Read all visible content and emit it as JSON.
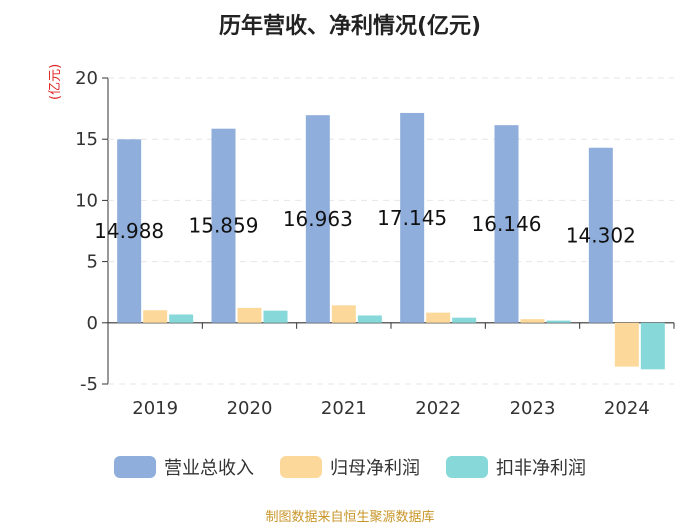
{
  "chart_data": {
    "type": "bar",
    "title": "历年营收、净利情况(亿元)",
    "unit_label": "(亿元)",
    "categories": [
      "2019",
      "2020",
      "2021",
      "2022",
      "2023",
      "2024"
    ],
    "ylim": [
      -5,
      20
    ],
    "yticks": [
      "20",
      "15",
      "10",
      "5",
      "0",
      "-5"
    ],
    "series": [
      {
        "name": "营业总收入",
        "color": "#8faedb",
        "values": [
          14.988,
          15.859,
          16.963,
          17.145,
          16.146,
          14.302
        ]
      },
      {
        "name": "归母净利润",
        "color": "#fcd99a",
        "values": [
          1.03,
          1.22,
          1.43,
          0.83,
          0.3,
          -3.58
        ]
      },
      {
        "name": "扣非净利润",
        "color": "#86d8d9",
        "values": [
          0.68,
          0.99,
          0.6,
          0.42,
          0.18,
          -3.8
        ]
      }
    ],
    "data_labels": [
      "14.988",
      "15.859",
      "16.963",
      "17.145",
      "16.146",
      "14.302"
    ],
    "legend_position": "bottom",
    "grid": true
  },
  "source": "制图数据来自恒生聚源数据库"
}
